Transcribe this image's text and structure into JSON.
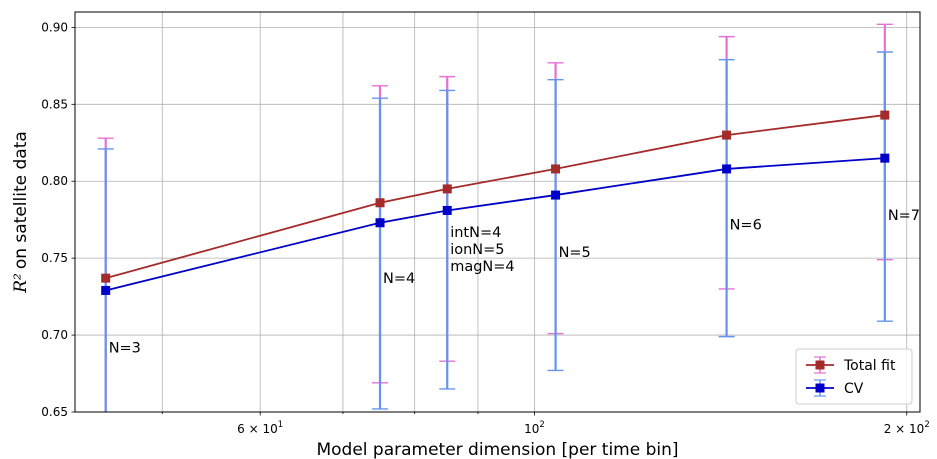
{
  "chart_data": {
    "type": "line",
    "xscale": "log",
    "xlabel": "Model parameter dimension [per time bin]",
    "ylabel": "on satellite data",
    "ylabel_math": "R²",
    "xlim": [
      42.5,
      205
    ],
    "ylim": [
      0.65,
      0.91
    ],
    "grid": true,
    "legend_position": "lower right",
    "x_ticks": [
      {
        "value": 60,
        "label": "6 × 10",
        "exp": "1"
      },
      {
        "value": 100,
        "label": "10",
        "exp": "2"
      },
      {
        "value": 200,
        "label": "2 × 10",
        "exp": "2"
      }
    ],
    "y_ticks": [
      {
        "value": 0.65,
        "label": "0.65"
      },
      {
        "value": 0.7,
        "label": "0.70"
      },
      {
        "value": 0.75,
        "label": "0.75"
      },
      {
        "value": 0.8,
        "label": "0.80"
      },
      {
        "value": 0.85,
        "label": "0.85"
      },
      {
        "value": 0.9,
        "label": "0.90"
      }
    ],
    "x": [
      45,
      75,
      85,
      104,
      143,
      192
    ],
    "series": [
      {
        "name": "Total fit",
        "color": "#a52a2a",
        "errcolor": "#e472d6",
        "y": [
          0.737,
          0.786,
          0.795,
          0.808,
          0.83,
          0.843
        ],
        "err_low": [
          0.6,
          0.669,
          0.683,
          0.701,
          0.73,
          0.749
        ],
        "err_high": [
          0.828,
          0.862,
          0.868,
          0.877,
          0.894,
          0.902
        ]
      },
      {
        "name": "CV",
        "color": "#0000c8",
        "errcolor": "#6495ed",
        "y": [
          0.729,
          0.773,
          0.781,
          0.791,
          0.808,
          0.815
        ],
        "err_low": [
          0.6,
          0.652,
          0.665,
          0.677,
          0.699,
          0.709
        ],
        "err_high": [
          0.821,
          0.854,
          0.859,
          0.866,
          0.879,
          0.884
        ]
      }
    ],
    "annotations": [
      {
        "lines": [
          "N=3"
        ],
        "x": 45,
        "y": 0.692
      },
      {
        "lines": [
          "N=4"
        ],
        "x": 75,
        "y": 0.737
      },
      {
        "lines": [
          "intN=4",
          "ionN=5",
          "magN=4"
        ],
        "x": 85,
        "y": 0.767
      },
      {
        "lines": [
          "N=5"
        ],
        "x": 104,
        "y": 0.754
      },
      {
        "lines": [
          "N=6"
        ],
        "x": 143,
        "y": 0.772
      },
      {
        "lines": [
          "N=7"
        ],
        "x": 192,
        "y": 0.778
      }
    ]
  }
}
